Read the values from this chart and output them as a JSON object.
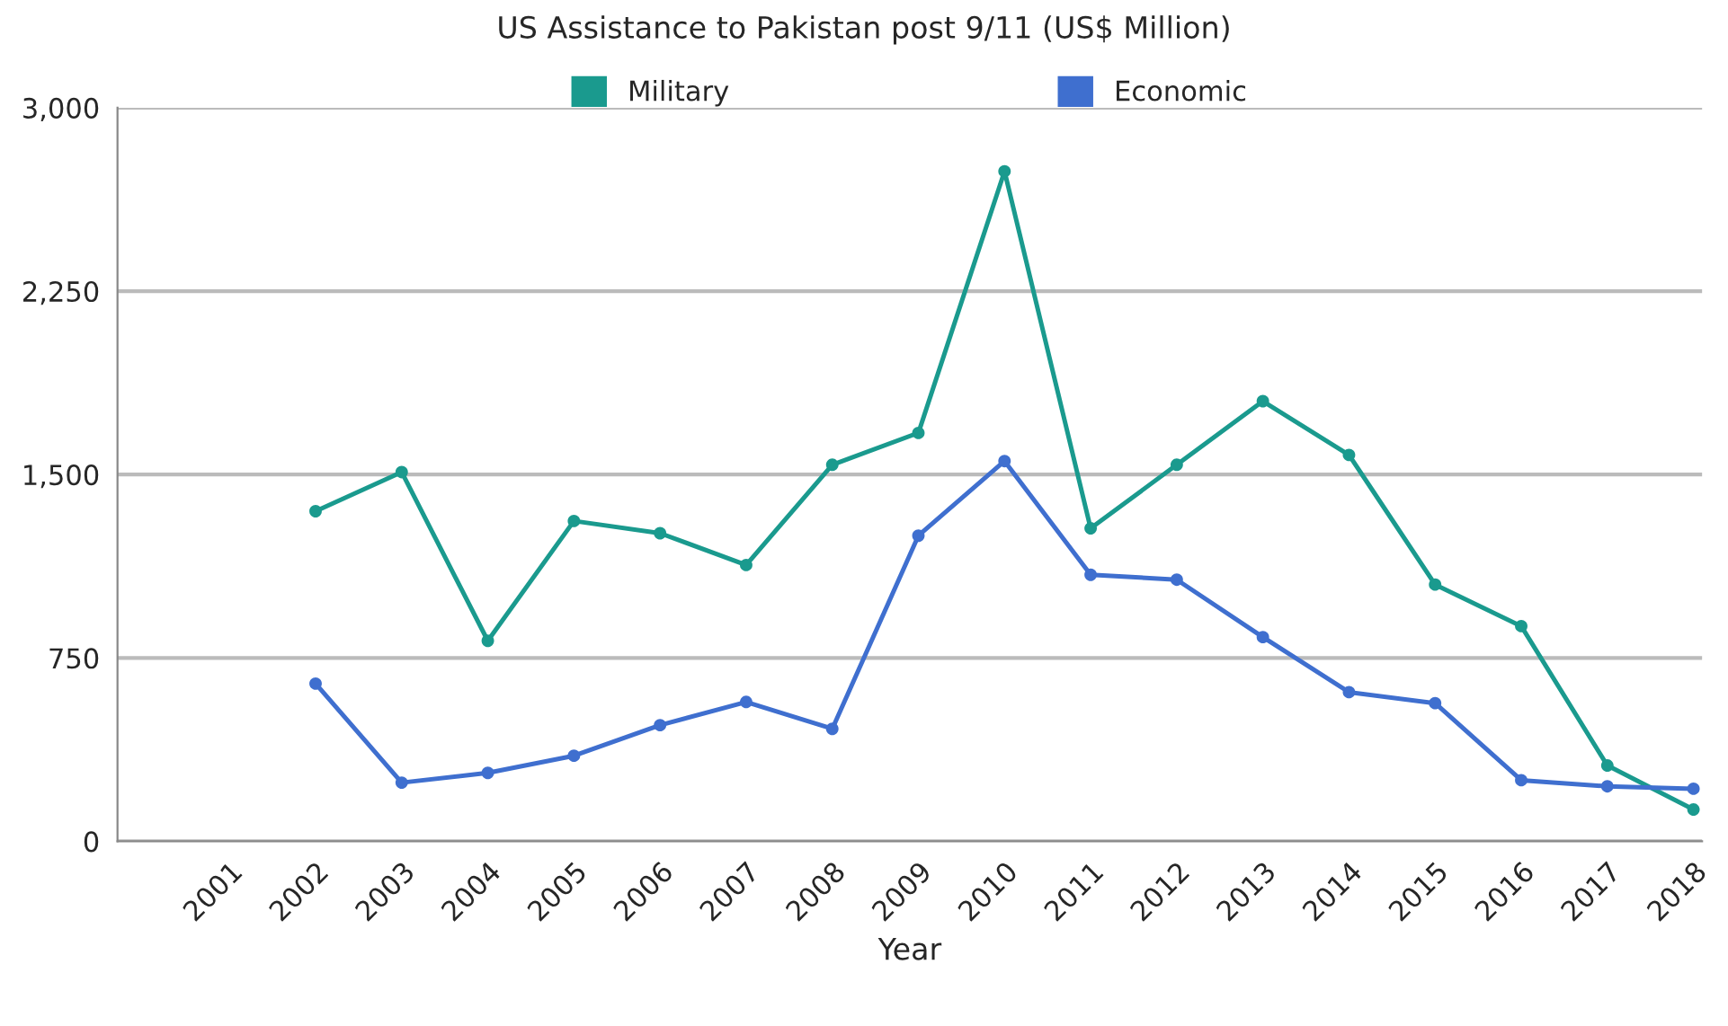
{
  "chart_data": {
    "type": "line",
    "title": "US Assistance to Pakistan post 9/11 (US$ Million)",
    "xlabel": "Year",
    "categories": [
      "2001",
      "2002",
      "2003",
      "2004",
      "2005",
      "2006",
      "2007",
      "2008",
      "2009",
      "2010",
      "2011",
      "2012",
      "2013",
      "2014",
      "2015",
      "2016",
      "2017",
      "2018"
    ],
    "series": [
      {
        "name": "Military",
        "color": "#1a9a8e",
        "values": [
          null,
          1350,
          1510,
          820,
          1310,
          1260,
          1130,
          1540,
          1670,
          2740,
          1280,
          1540,
          1800,
          1580,
          1050,
          880,
          310,
          130
        ]
      },
      {
        "name": "Economic",
        "color": "#3f6fcf",
        "values": [
          null,
          645,
          240,
          280,
          350,
          475,
          570,
          460,
          1250,
          1555,
          1090,
          1070,
          835,
          610,
          565,
          250,
          225,
          215
        ]
      }
    ],
    "ylim": [
      0,
      3000
    ],
    "yticks": [
      {
        "value": 0,
        "label": "0"
      },
      {
        "value": 750,
        "label": "750"
      },
      {
        "value": 1500,
        "label": "1,500"
      },
      {
        "value": 2250,
        "label": "2,250"
      },
      {
        "value": 3000,
        "label": "3,000"
      }
    ],
    "grid": "y",
    "legend": "top",
    "marker": "circle",
    "line_style": "solid"
  }
}
